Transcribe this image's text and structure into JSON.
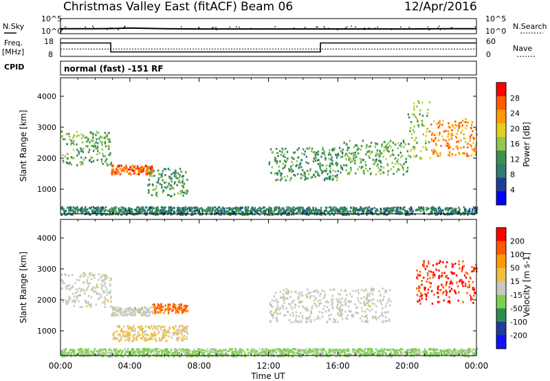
{
  "header": {
    "title": "Christmas Valley East (fitACF)",
    "beam": "Beam 06",
    "date": "12/Apr/2016"
  },
  "side_labels": {
    "nsky": "N.Sky",
    "nsearch": "N.Search",
    "freq": "Freq.",
    "freq_unit": "[MHz]",
    "nave": "Nave",
    "cpid": "CPID"
  },
  "cpid_text": "normal (fast) -151 RF",
  "colors": {
    "power_scale": [
      "#0000ff",
      "#1f3c9e",
      "#2e7d6d",
      "#3f8f4f",
      "#8fc84a",
      "#e0d020",
      "#ff9a00",
      "#ff5a00",
      "#ff0000"
    ],
    "velocity_scale": [
      "#1010ff",
      "#1f3c9e",
      "#2e8d4e",
      "#7cd050",
      "#c8c8c0",
      "#f0c040",
      "#ff9a00",
      "#ff5a00",
      "#ff0000"
    ]
  },
  "chart_data": [
    {
      "type": "line",
      "name": "noise",
      "left_axis": {
        "label": "N.Sky",
        "ticks": [
          "10^5",
          "10^0"
        ],
        "scale": "log"
      },
      "right_axis": {
        "label": "N.Search",
        "ticks": [
          "10^5",
          "10^0"
        ],
        "scale": "log"
      },
      "x_ticks": [
        "00:00",
        "04:00",
        "08:00",
        "12:00",
        "16:00",
        "20:00",
        "00:00"
      ],
      "series": [
        {
          "name": "N.Sky",
          "x_hours": [
            0,
            1,
            2,
            3,
            4,
            5,
            6,
            8,
            10,
            12,
            14,
            16,
            18,
            20,
            22,
            24
          ],
          "values": [
            10,
            10,
            10,
            12,
            20,
            14,
            10,
            8,
            8,
            8,
            8,
            8,
            8,
            8,
            10,
            10
          ]
        },
        {
          "name": "N.Search",
          "x_hours": [
            0,
            24
          ],
          "values": [
            1,
            1
          ]
        }
      ]
    },
    {
      "type": "line",
      "name": "frequency",
      "left_axis": {
        "label": "Freq. [MHz]",
        "ticks": [
          "18",
          "8"
        ],
        "range": [
          8,
          18
        ]
      },
      "right_axis": {
        "label": "Nave",
        "ticks": [
          "60",
          "0"
        ],
        "range": [
          0,
          60
        ]
      },
      "series": [
        {
          "name": "Freq.",
          "x_hours": [
            0,
            2.9,
            2.9,
            15,
            15,
            24
          ],
          "values": [
            15.5,
            15.5,
            10.5,
            10.5,
            15.5,
            15.5
          ]
        },
        {
          "name": "Nave",
          "x_hours": [
            0,
            24
          ],
          "values": [
            25,
            25
          ]
        }
      ]
    },
    {
      "type": "heatmap",
      "name": "power",
      "xlabel": "",
      "ylabel": "Slant Range [km]",
      "yticks": [
        1000,
        2000,
        3000,
        4000
      ],
      "ylim": [
        200,
        4600
      ],
      "xlim_hours": [
        0,
        24
      ],
      "colorbar": {
        "label": "Power [dB]",
        "ticks": [
          "28",
          "24",
          "20",
          "16",
          "12",
          "8",
          "4"
        ],
        "range": [
          0,
          32
        ]
      },
      "features": [
        {
          "x_hours": [
            0,
            2.9
          ],
          "y_km": [
            1800,
            2900
          ],
          "value_db": 14
        },
        {
          "x_hours": [
            2.9,
            5.3
          ],
          "y_km": [
            1500,
            1800
          ],
          "value_db": 26
        },
        {
          "x_hours": [
            5,
            7.3
          ],
          "y_km": [
            800,
            1700
          ],
          "value_db": 12
        },
        {
          "x_hours": [
            12,
            16.3
          ],
          "y_km": [
            1300,
            2400
          ],
          "value_db": 12
        },
        {
          "x_hours": [
            16.3,
            20
          ],
          "y_km": [
            1500,
            2600
          ],
          "value_db": 14
        },
        {
          "x_hours": [
            20,
            21.3
          ],
          "y_km": [
            2000,
            3900
          ],
          "value_db": 16
        },
        {
          "x_hours": [
            21.3,
            24
          ],
          "y_km": [
            2100,
            3300
          ],
          "value_db": 24
        },
        {
          "x_hours": [
            0,
            24
          ],
          "y_km": [
            200,
            450
          ],
          "value_db": 10
        }
      ]
    },
    {
      "type": "heatmap",
      "name": "velocity",
      "xlabel": "Time UT",
      "ylabel": "Slant Range [km]",
      "yticks": [
        1000,
        2000,
        3000,
        4000
      ],
      "ylim": [
        200,
        4600
      ],
      "xlim_hours": [
        0,
        24
      ],
      "x_ticks": [
        "00:00",
        "04:00",
        "08:00",
        "12:00",
        "16:00",
        "20:00",
        "00:00"
      ],
      "colorbar": {
        "label": "Velocity [m s-1]",
        "ticks": [
          "200",
          "100",
          "50",
          "15",
          "-15",
          "-50",
          "-100",
          "-200"
        ],
        "range": [
          -250,
          250
        ]
      },
      "features": [
        {
          "x_hours": [
            0,
            2.9
          ],
          "y_km": [
            1800,
            2900
          ],
          "value_ms": 0
        },
        {
          "x_hours": [
            2.9,
            5.3
          ],
          "y_km": [
            1500,
            1800
          ],
          "value_ms": 0
        },
        {
          "x_hours": [
            5.3,
            7.3
          ],
          "y_km": [
            1600,
            1900
          ],
          "value_ms": 150
        },
        {
          "x_hours": [
            3,
            7.3
          ],
          "y_km": [
            700,
            1200
          ],
          "value_ms": 40
        },
        {
          "x_hours": [
            12,
            19
          ],
          "y_km": [
            1300,
            2400
          ],
          "value_ms": 0
        },
        {
          "x_hours": [
            20.5,
            24
          ],
          "y_km": [
            1900,
            3300
          ],
          "value_ms": 200
        },
        {
          "x_hours": [
            0,
            24
          ],
          "y_km": [
            200,
            450
          ],
          "value_ms": -40
        }
      ]
    }
  ]
}
